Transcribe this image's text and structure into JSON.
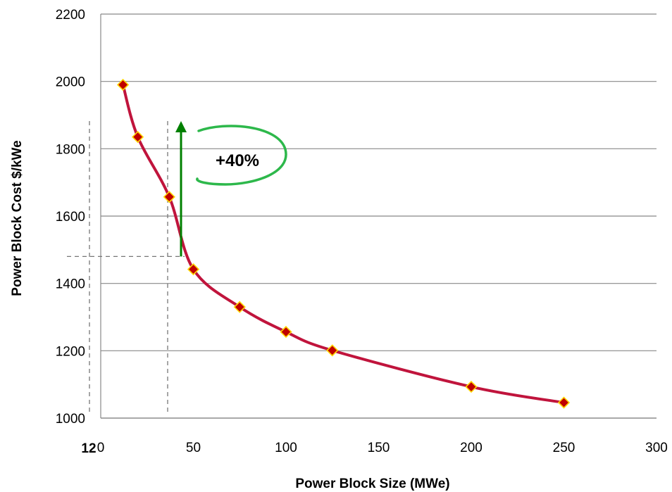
{
  "chart_data": {
    "type": "line",
    "title": "",
    "xlabel": "Power Block Size (MWe)",
    "ylabel": "Power Block Cost $/kWe",
    "xlim": [
      0,
      300
    ],
    "ylim": [
      1000,
      2200
    ],
    "xticks": [
      0,
      50,
      100,
      150,
      200,
      250,
      300
    ],
    "yticks": [
      1000,
      1200,
      1400,
      1600,
      1800,
      2000,
      2200
    ],
    "grid": "horizontal",
    "series": [
      {
        "color": "#c0143c",
        "marker_fill": "#c00000",
        "marker_edge": "#ffd700",
        "x": [
          12,
          20,
          37,
          50,
          75,
          100,
          125,
          200,
          250
        ],
        "y": [
          1990,
          1835,
          1657,
          1442,
          1330,
          1256,
          1201,
          1093,
          1046
        ]
      }
    ],
    "annotations": {
      "increase_label": "+40%",
      "arrow_color": "#008000",
      "ellipse_color": "#2db84b",
      "x_marker_label": "12",
      "reference_x": [
        12,
        35
      ],
      "reference_y": 1480
    }
  }
}
